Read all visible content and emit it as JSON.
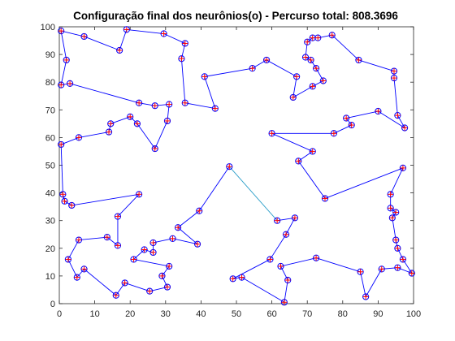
{
  "chart_data": {
    "type": "line",
    "title": "Configuração final dos neurônios(o) - Percurso total: 808.3696",
    "xlabel": "",
    "ylabel": "",
    "xlim": [
      0,
      100
    ],
    "ylim": [
      0,
      100
    ],
    "x_ticks": [
      0,
      10,
      20,
      30,
      40,
      50,
      60,
      70,
      80,
      90,
      100
    ],
    "y_ticks": [
      0,
      10,
      20,
      30,
      40,
      50,
      60,
      70,
      80,
      90,
      100
    ],
    "grid": false,
    "box": true,
    "path_color": "#0000ff",
    "closing_segment_color": "#2b9ec9",
    "marker_edge_color": "#0000ff",
    "marker_cross_color": "#ff0000",
    "route": [
      [
        48,
        49.5
      ],
      [
        39.5,
        33.5
      ],
      [
        33.5,
        27.5
      ],
      [
        39,
        21.5
      ],
      [
        32,
        23.5
      ],
      [
        26.5,
        22
      ],
      [
        26.5,
        18.5
      ],
      [
        24,
        19.5
      ],
      [
        21,
        16
      ],
      [
        31,
        13.5
      ],
      [
        29,
        10
      ],
      [
        30.5,
        6
      ],
      [
        25.5,
        4.5
      ],
      [
        18.5,
        7.5
      ],
      [
        16,
        3
      ],
      [
        7,
        12.5
      ],
      [
        5,
        9.5
      ],
      [
        2.5,
        16
      ],
      [
        5.5,
        23
      ],
      [
        13.5,
        24
      ],
      [
        16.5,
        21
      ],
      [
        16.5,
        31.5
      ],
      [
        22.5,
        39.5
      ],
      [
        3.5,
        35.5
      ],
      [
        1.5,
        37
      ],
      [
        1,
        39.5
      ],
      [
        0.5,
        57.5
      ],
      [
        5.5,
        60
      ],
      [
        14,
        62
      ],
      [
        14.5,
        65
      ],
      [
        20,
        67.5
      ],
      [
        22,
        65
      ],
      [
        27,
        56
      ],
      [
        30.5,
        66
      ],
      [
        31,
        72
      ],
      [
        27,
        71.5
      ],
      [
        22.5,
        72.5
      ],
      [
        3,
        79.5
      ],
      [
        0.5,
        79
      ],
      [
        2,
        88
      ],
      [
        0.5,
        98.5
      ],
      [
        7,
        96.5
      ],
      [
        17,
        91.5
      ],
      [
        19,
        99
      ],
      [
        29.5,
        97.5
      ],
      [
        35.5,
        94
      ],
      [
        34.5,
        88.5
      ],
      [
        35.5,
        72.5
      ],
      [
        44,
        70.5
      ],
      [
        41,
        82
      ],
      [
        54.5,
        85
      ],
      [
        58.5,
        88
      ],
      [
        67,
        82
      ],
      [
        66,
        74.5
      ],
      [
        71.5,
        78.5
      ],
      [
        74.5,
        80.5
      ],
      [
        72.5,
        85
      ],
      [
        71,
        88
      ],
      [
        69.5,
        89
      ],
      [
        70,
        94.5
      ],
      [
        71.5,
        96
      ],
      [
        73,
        96
      ],
      [
        77,
        97
      ],
      [
        84.5,
        88
      ],
      [
        94.5,
        84
      ],
      [
        94.5,
        81.5
      ],
      [
        95.5,
        68
      ],
      [
        97.5,
        63.5
      ],
      [
        90,
        69.5
      ],
      [
        81,
        67
      ],
      [
        82.5,
        64.5
      ],
      [
        77.5,
        61.5
      ],
      [
        60,
        61.5
      ],
      [
        71.5,
        55
      ],
      [
        67.5,
        51.5
      ],
      [
        75,
        38
      ],
      [
        97,
        49
      ],
      [
        93.5,
        39.5
      ],
      [
        93.5,
        34.5
      ],
      [
        95,
        33
      ],
      [
        94,
        31
      ],
      [
        95,
        23
      ],
      [
        95.5,
        20
      ],
      [
        97,
        16
      ],
      [
        99.5,
        11
      ],
      [
        95.5,
        13
      ],
      [
        91,
        12.5
      ],
      [
        86.5,
        2.5
      ],
      [
        85,
        11.5
      ],
      [
        72.5,
        16.5
      ],
      [
        62.5,
        13.5
      ],
      [
        64.5,
        8.5
      ],
      [
        63.5,
        0.5
      ],
      [
        51.5,
        9.5
      ],
      [
        49,
        9
      ],
      [
        59.5,
        16
      ],
      [
        64,
        25
      ],
      [
        66.5,
        31
      ],
      [
        61.5,
        30
      ]
    ]
  }
}
